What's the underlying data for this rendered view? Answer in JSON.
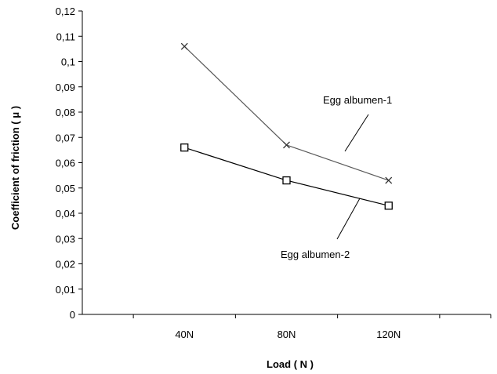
{
  "chart_data": {
    "type": "line",
    "title": "",
    "xlabel": "Load ( N )",
    "ylabel": "Coefficient of friction ( μ )",
    "categories": [
      "40N",
      "80N",
      "120N"
    ],
    "ylim": [
      0,
      0.12
    ],
    "yticks": [
      0,
      0.01,
      0.02,
      0.03,
      0.04,
      0.05,
      0.06,
      0.07,
      0.08,
      0.09,
      0.1,
      0.11,
      0.12
    ],
    "ytick_labels": [
      "0",
      "0,01",
      "0,02",
      "0,03",
      "0,04",
      "0,05",
      "0,06",
      "0,07",
      "0,08",
      "0,09",
      "0,1",
      "0,11",
      "0,12"
    ],
    "grid": false,
    "legend": "none",
    "series": [
      {
        "name": "Egg albumen-1",
        "values": [
          0.106,
          0.067,
          0.053
        ],
        "marker": "x",
        "color": "#595959"
      },
      {
        "name": "Egg albumen-2",
        "values": [
          0.066,
          0.053,
          0.043
        ],
        "marker": "square",
        "color": "#000000"
      }
    ],
    "annotations": [
      {
        "text": "Egg albumen-1"
      },
      {
        "text": "Egg albumen-2"
      }
    ]
  }
}
